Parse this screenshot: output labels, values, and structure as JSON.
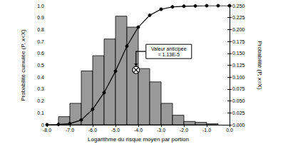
{
  "chart_data": {
    "type": "histogram",
    "xlabel": "Logarithme du risque moyen par portion",
    "ylabel": "Probabilité cumulée (P, x<X)",
    "y2label": "Probabilité (P, x=X)",
    "xlim": [
      -8,
      0
    ],
    "xticks": [
      {
        "value": -8,
        "label": "-8.0"
      },
      {
        "value": -7,
        "label": "-7.0"
      },
      {
        "value": -6,
        "label": "-6.0"
      },
      {
        "value": -5,
        "label": "-5.0"
      },
      {
        "value": -4,
        "label": "-4.0"
      },
      {
        "value": -3,
        "label": "-3.0"
      },
      {
        "value": -2,
        "label": "-2.0"
      },
      {
        "value": -1,
        "label": "-1.0"
      },
      {
        "value": 0,
        "label": "0.0"
      }
    ],
    "ylim": [
      0,
      1
    ],
    "yticks": [
      0,
      0.1,
      0.2,
      0.3,
      0.4,
      0.5,
      0.6,
      0.7,
      0.8,
      0.9,
      {
        "value": 1,
        "label": "1.0"
      }
    ],
    "y2lim": [
      0,
      0.25
    ],
    "y2ticks": [
      {
        "value": 0,
        "label": "0.000"
      },
      {
        "value": 0.025,
        "label": "0.025"
      },
      {
        "value": 0.05,
        "label": "0.050"
      },
      {
        "value": 0.075,
        "label": "0.075"
      },
      {
        "value": 0.1,
        "label": "0.100"
      },
      {
        "value": 0.125,
        "label": "0.125"
      },
      {
        "value": 0.15,
        "label": "0.150"
      },
      {
        "value": 0.175,
        "label": "0.175"
      },
      {
        "value": 0.2,
        "label": "0.200"
      },
      {
        "value": 0.225,
        "label": "0.225"
      },
      {
        "value": 0.25,
        "label": "0.250"
      }
    ],
    "grid": false,
    "series": [
      {
        "type": "bar",
        "axis": "y2",
        "color": "#999999",
        "bins": [
          -7.5,
          -7,
          -6.5,
          -6,
          -5.5,
          -5,
          -4.5,
          -4,
          -3.5,
          -3,
          -2.5,
          -2,
          -1.5,
          -1,
          -0.5
        ],
        "values": [
          0.017,
          0.045,
          0.113,
          0.145,
          0.18,
          0.228,
          0.205,
          0.118,
          0.09,
          0.045,
          0.02,
          0.007,
          0.005,
          0.002
        ]
      },
      {
        "type": "line",
        "color": "#000000",
        "marker": "circle",
        "x": [
          -8,
          -7.5,
          -7,
          -6.5,
          -6,
          -5.5,
          -5,
          -4.5,
          -4,
          -3.5,
          -3,
          -2.5,
          -2,
          -1.5,
          -1,
          -0.5,
          0
        ],
        "values": [
          0,
          0.003,
          0.01,
          0.04,
          0.13,
          0.27,
          0.45,
          0.66,
          0.82,
          0.92,
          0.97,
          0.99,
          0.995,
          0.998,
          1,
          1,
          1
        ]
      }
    ],
    "annotation": {
      "text": "Valeur anticipée\n= 1.13E-5",
      "x": -4.1,
      "y": 0.46
    }
  }
}
